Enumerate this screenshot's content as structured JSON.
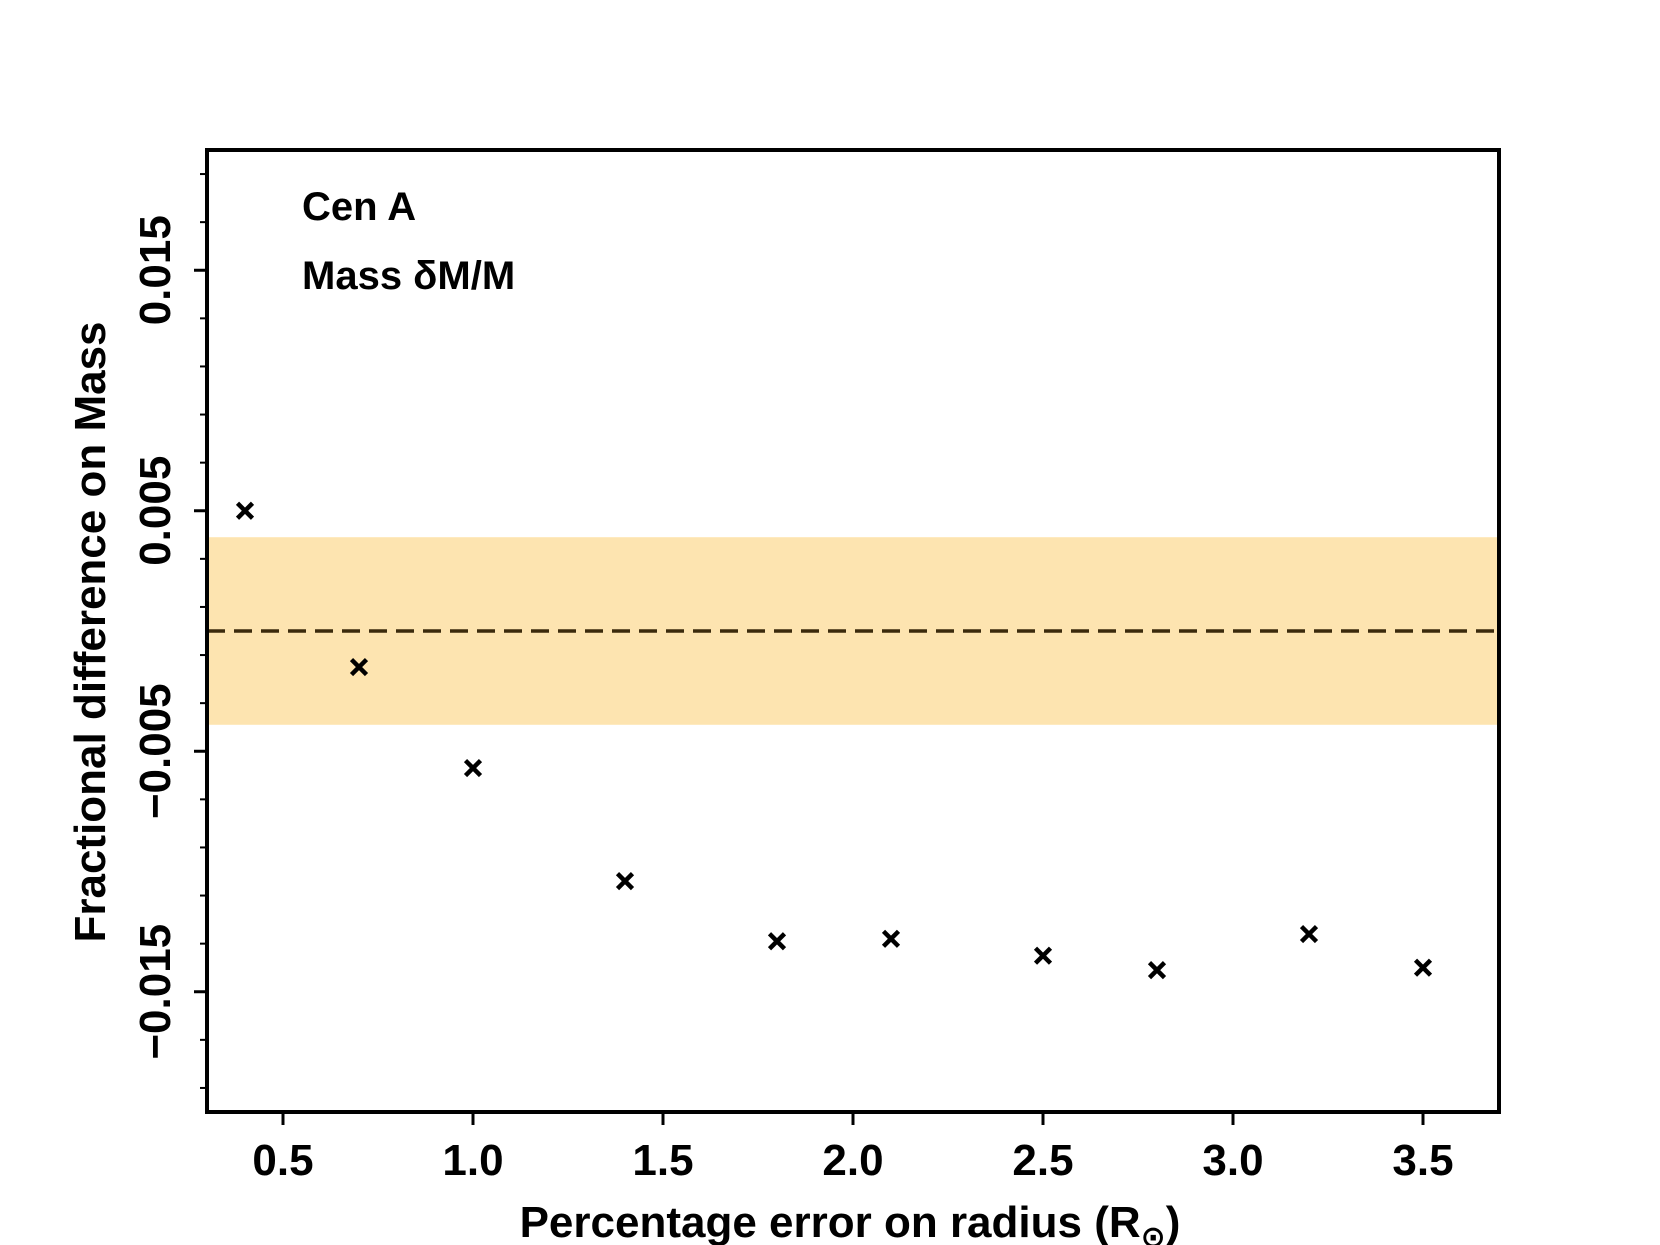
{
  "chart_data": {
    "type": "scatter",
    "xlabel": "Percentage error on radius (R",
    "xlabel_symbol": "⊙",
    "xlabel_close": ")",
    "ylabel": "Fractional difference on Mass",
    "xlim": [
      0.3,
      3.7
    ],
    "ylim": [
      -0.02,
      0.02
    ],
    "x_ticks": [
      0.5,
      1.0,
      1.5,
      2.0,
      2.5,
      3.0,
      3.5
    ],
    "x_tick_labels": [
      "0.5",
      "1.0",
      "1.5",
      "2.0",
      "2.5",
      "3.0",
      "3.5"
    ],
    "y_ticks": [
      -0.015,
      -0.005,
      0.005,
      0.015
    ],
    "y_tick_labels": [
      "−0.015",
      "−0.005",
      "0.005",
      "0.015"
    ],
    "y_minor_ticks": [
      -0.019,
      -0.017,
      -0.013,
      -0.011,
      -0.009,
      -0.007,
      -0.003,
      -0.001,
      0.001,
      0.003,
      0.007,
      0.009,
      0.011,
      0.013,
      0.017,
      0.019
    ],
    "annotations": [
      "Cen A",
      "Mass δM/M"
    ],
    "series": [
      {
        "marker": "x",
        "color": "#000000",
        "x": [
          0.4,
          0.7,
          1.0,
          1.4,
          1.8,
          2.1,
          2.5,
          2.8,
          3.2,
          3.5
        ],
        "y": [
          0.005,
          -0.0015,
          -0.0057,
          -0.0104,
          -0.0129,
          -0.0128,
          -0.0135,
          -0.0141,
          -0.0126,
          -0.014
        ]
      }
    ],
    "reference_line": {
      "y": 0.0,
      "style": "dashed",
      "color": "#000000"
    },
    "band": {
      "y_low": -0.0039,
      "y_high": 0.0039,
      "color": "#fcd27b",
      "opacity": 0.6
    },
    "grid": false,
    "legend": "none"
  }
}
